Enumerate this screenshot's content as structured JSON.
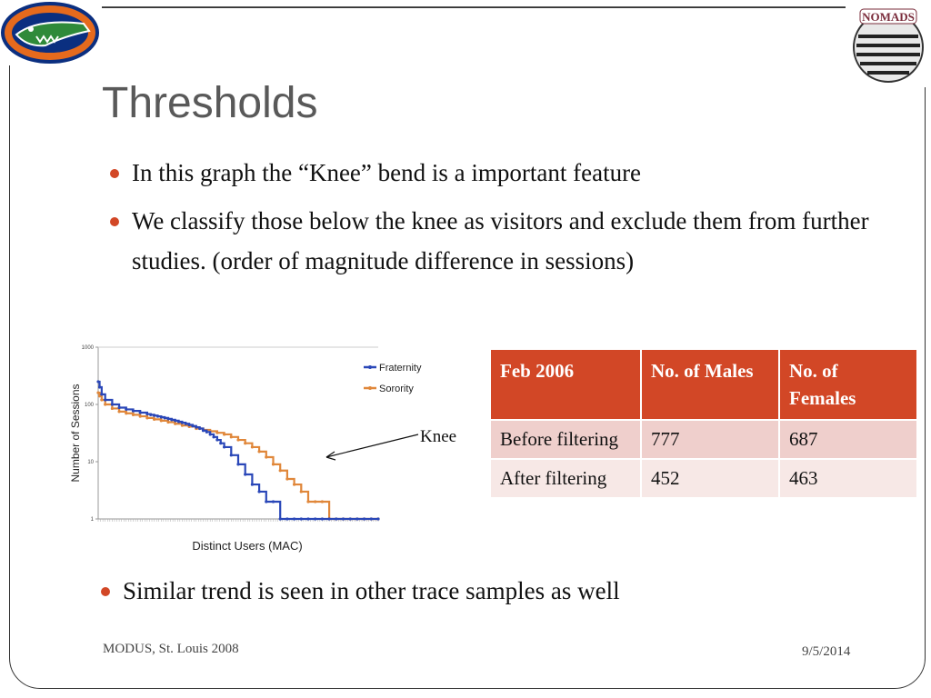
{
  "slide": {
    "title": "Thresholds",
    "bullets": [
      "In this graph the “Knee” bend is a important feature",
      "We classify those below the knee as visitors and exclude them from further studies. (order of magnitude difference in sessions)",
      "Similar trend is seen in other trace samples as well"
    ],
    "knee_label": "Knee",
    "footer_left": "MODUS, St. Louis 2008",
    "footer_right": "9/5/2014",
    "accent_color": "#d24726",
    "logos": {
      "left": "gator-logo",
      "right": "nomads-logo"
    },
    "nomads_text": "NOMADS"
  },
  "table": {
    "headers": [
      "Feb 2006",
      "No. of Males",
      "No. of Females"
    ],
    "rows": [
      [
        "Before filtering",
        "777",
        "687"
      ],
      [
        "After filtering",
        "452",
        "463"
      ]
    ]
  },
  "chart_data": {
    "type": "line",
    "xlabel": "Distinct Users (MAC)",
    "ylabel": "Number of Sessions",
    "yscale": "log",
    "ylim": [
      1,
      1000
    ],
    "yticks": [
      "1000",
      "100",
      "10",
      "1"
    ],
    "legend_position": "top-right",
    "grid": false,
    "series": [
      {
        "name": "Fraternity",
        "color": "#2a47b8",
        "x": [
          0,
          2,
          5,
          10,
          20,
          30,
          40,
          50,
          60,
          70,
          75,
          80,
          85,
          90,
          95,
          100,
          105,
          110,
          115,
          120,
          125,
          130,
          135,
          140,
          145,
          150,
          155,
          160,
          165,
          170,
          175,
          180,
          190,
          200,
          210,
          220,
          230,
          240,
          250,
          260,
          270,
          280,
          290,
          300,
          310,
          320,
          330,
          340,
          350,
          360,
          370,
          380,
          390,
          400
        ],
        "y": [
          250,
          200,
          150,
          120,
          100,
          88,
          82,
          77,
          72,
          68,
          66,
          64,
          62,
          60,
          58,
          56,
          54,
          52,
          50,
          48,
          46,
          44,
          42,
          40,
          38,
          35,
          33,
          30,
          27,
          24,
          21,
          18,
          13,
          9,
          6,
          4,
          3,
          2,
          2,
          1,
          1,
          1,
          1,
          1,
          1,
          1,
          1,
          1,
          1,
          1,
          1,
          1,
          1,
          1
        ]
      },
      {
        "name": "Sorority",
        "color": "#e0873a",
        "x": [
          0,
          2,
          5,
          10,
          20,
          30,
          40,
          50,
          60,
          70,
          80,
          90,
          100,
          110,
          120,
          130,
          140,
          150,
          160,
          170,
          180,
          190,
          200,
          210,
          220,
          230,
          240,
          250,
          260,
          270,
          280,
          290,
          300,
          310,
          320,
          330,
          340,
          350,
          360,
          370,
          380,
          390,
          400
        ],
        "y": [
          160,
          140,
          120,
          100,
          85,
          75,
          70,
          66,
          62,
          58,
          55,
          52,
          49,
          46,
          43,
          41,
          38,
          36,
          34,
          32,
          30,
          27,
          24,
          21,
          18,
          15,
          12,
          9,
          7,
          5,
          4,
          3,
          2,
          2,
          2,
          1,
          1,
          1,
          1,
          1,
          1,
          1,
          1
        ]
      }
    ]
  }
}
